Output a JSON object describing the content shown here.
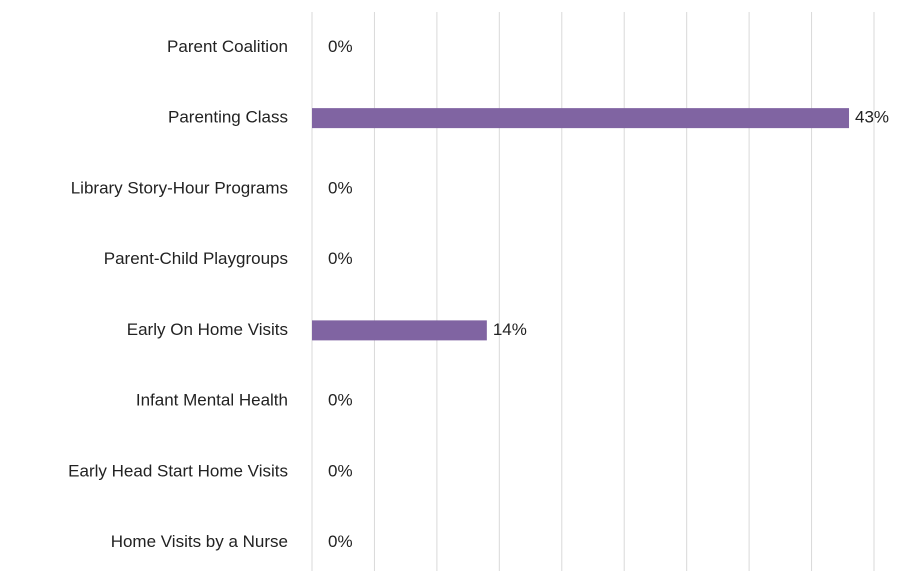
{
  "chart_data": {
    "type": "bar",
    "orientation": "horizontal",
    "categories": [
      "Parent Coalition",
      "Parenting Class",
      "Library Story-Hour Programs",
      "Parent-Child Playgroups",
      "Early On Home Visits",
      "Infant Mental Health",
      "Early Head Start Home Visits",
      "Home Visits by a Nurse"
    ],
    "values": [
      0,
      43,
      0,
      0,
      14,
      0,
      0,
      0
    ],
    "value_labels": [
      "0%",
      "43%",
      "0%",
      "0%",
      "14%",
      "0%",
      "0%",
      "0%"
    ],
    "color": "#8064a2",
    "xlim": [
      0,
      45
    ],
    "xticks": [
      0,
      5,
      10,
      15,
      20,
      25,
      30,
      35,
      40,
      45
    ],
    "grid": true
  }
}
